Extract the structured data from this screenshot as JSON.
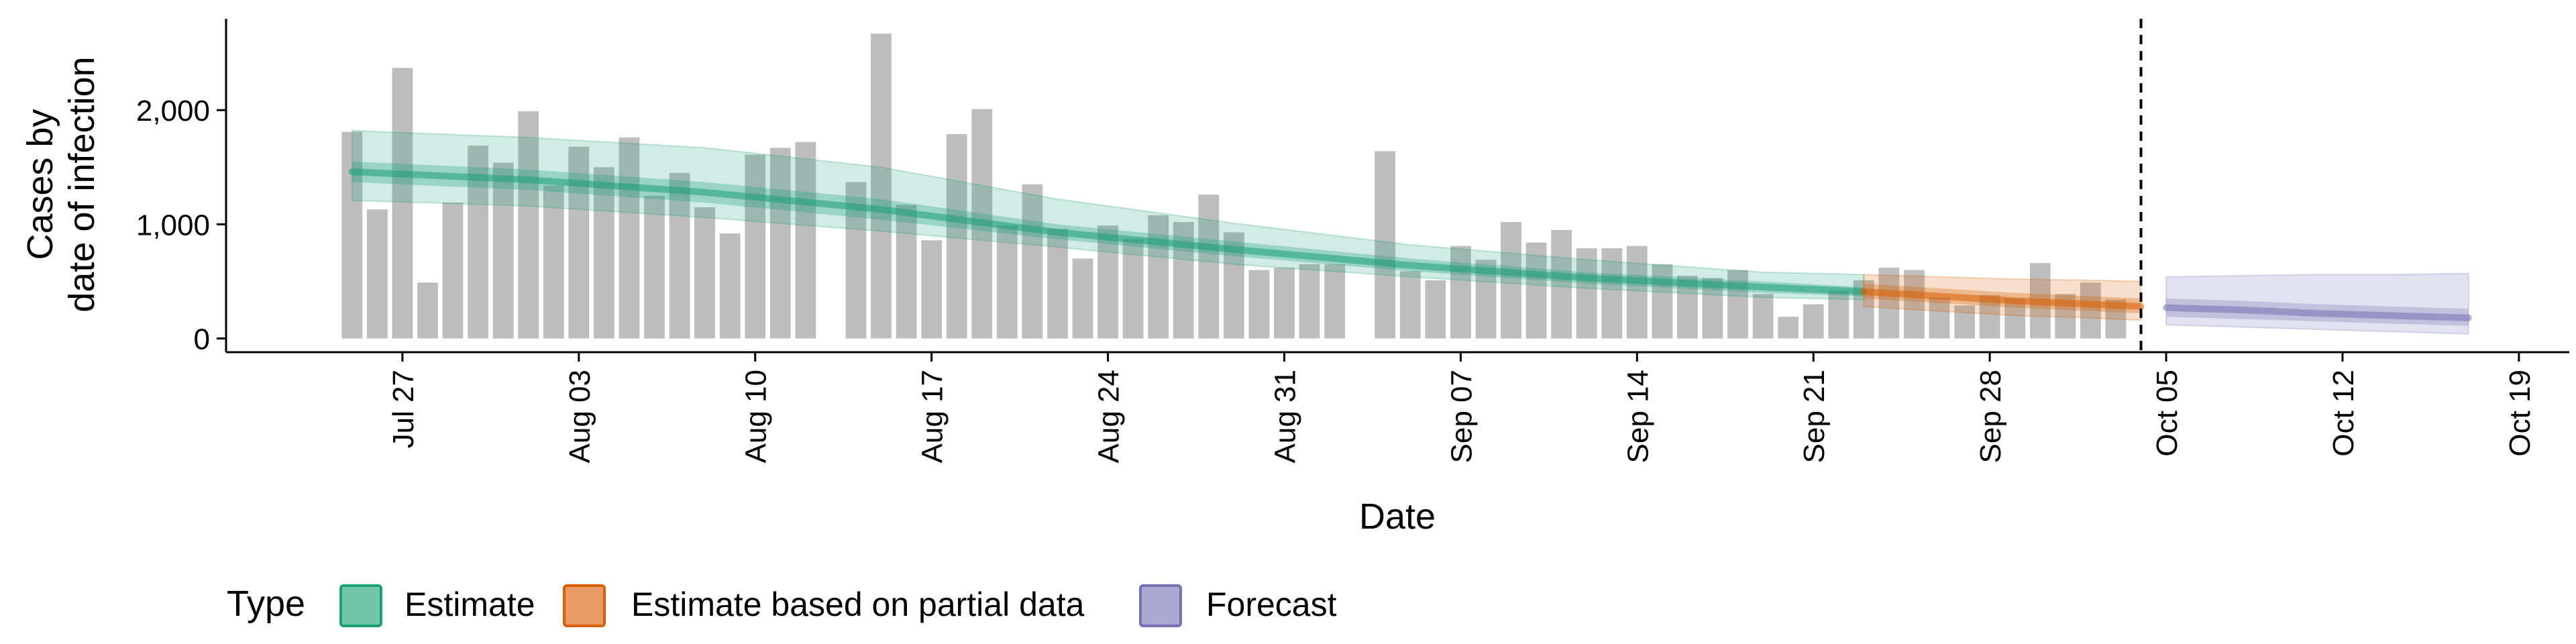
{
  "chart_data": {
    "type": "bar",
    "xlabel": "Date",
    "ylabel_lines": [
      "Cases by",
      "date of infection"
    ],
    "yticks": [
      0,
      1000,
      2000
    ],
    "ytick_labels": [
      "0",
      "1,000",
      "2,000"
    ],
    "ylim": [
      -120,
      2800
    ],
    "xlim": [
      "2020-07-20",
      "2020-10-21"
    ],
    "xticks": [
      "2020-07-27",
      "2020-08-03",
      "2020-08-10",
      "2020-08-17",
      "2020-08-24",
      "2020-08-31",
      "2020-09-07",
      "2020-09-14",
      "2020-09-21",
      "2020-09-28",
      "2020-10-05",
      "2020-10-12",
      "2020-10-19"
    ],
    "xtick_labels": [
      "Jul 27",
      "Aug 03",
      "Aug 10",
      "Aug 17",
      "Aug 24",
      "Aug 31",
      "Sep 07",
      "Sep 14",
      "Sep 21",
      "Sep 28",
      "Oct 05",
      "Oct 12",
      "Oct 19"
    ],
    "reported_cases": {
      "start_date": "2020-07-25",
      "values": [
        1810,
        1130,
        2370,
        490,
        1190,
        1690,
        1540,
        1990,
        1340,
        1680,
        1500,
        1760,
        1250,
        1450,
        1150,
        920,
        1610,
        1670,
        1720,
        null,
        1370,
        2670,
        1170,
        860,
        1790,
        2010,
        990,
        1350,
        960,
        700,
        990,
        870,
        1080,
        1020,
        1260,
        930,
        600,
        620,
        650,
        650,
        null,
        1640,
        590,
        510,
        810,
        690,
        1020,
        840,
        950,
        790,
        790,
        810,
        650,
        550,
        530,
        600,
        390,
        190,
        300,
        420,
        510,
        620,
        600,
        360,
        290,
        380,
        350,
        660,
        390,
        490,
        340
      ],
      "color": "#bdbdbd"
    },
    "vline_date": "2020-10-04",
    "series": [
      {
        "name": "Estimate",
        "color": "#1b9e77",
        "dates": [
          "2020-07-25",
          "2020-08-01",
          "2020-08-08",
          "2020-08-15",
          "2020-08-22",
          "2020-08-29",
          "2020-09-05",
          "2020-09-12",
          "2020-09-19",
          "2020-09-23"
        ],
        "median": [
          1460,
          1390,
          1280,
          1130,
          930,
          780,
          640,
          530,
          450,
          410
        ],
        "inner_lower": [
          1370,
          1300,
          1190,
          1040,
          870,
          720,
          590,
          480,
          400,
          370
        ],
        "inner_upper": [
          1550,
          1480,
          1370,
          1220,
          1000,
          850,
          700,
          580,
          500,
          450
        ],
        "outer_lower": [
          1210,
          1160,
          1060,
          940,
          800,
          650,
          540,
          440,
          360,
          340
        ],
        "outer_upper": [
          1820,
          1760,
          1670,
          1500,
          1220,
          1010,
          820,
          690,
          580,
          560
        ]
      },
      {
        "name": "Estimate based on partial data",
        "color": "#d95f02",
        "dates": [
          "2020-09-23",
          "2020-09-26",
          "2020-09-29",
          "2020-10-02",
          "2020-10-04"
        ],
        "median": [
          410,
          370,
          330,
          300,
          280
        ],
        "inner_lower": [
          350,
          310,
          270,
          240,
          220
        ],
        "inner_upper": [
          480,
          440,
          400,
          370,
          350
        ],
        "outer_lower": [
          280,
          240,
          200,
          180,
          160
        ],
        "outer_upper": [
          560,
          540,
          520,
          510,
          500
        ]
      },
      {
        "name": "Forecast",
        "color": "#7570b3",
        "dates": [
          "2020-10-05",
          "2020-10-08",
          "2020-10-11",
          "2020-10-14",
          "2020-10-17"
        ],
        "median": [
          270,
          250,
          220,
          200,
          180
        ],
        "inner_lower": [
          190,
          170,
          150,
          130,
          110
        ],
        "inner_upper": [
          350,
          330,
          300,
          280,
          260
        ],
        "outer_lower": [
          120,
          100,
          80,
          60,
          40
        ],
        "outer_upper": [
          540,
          550,
          560,
          560,
          570
        ]
      }
    ],
    "legend": {
      "title": "Type",
      "position": "bottom",
      "entries": [
        "Estimate",
        "Estimate based on partial data",
        "Forecast"
      ]
    }
  }
}
